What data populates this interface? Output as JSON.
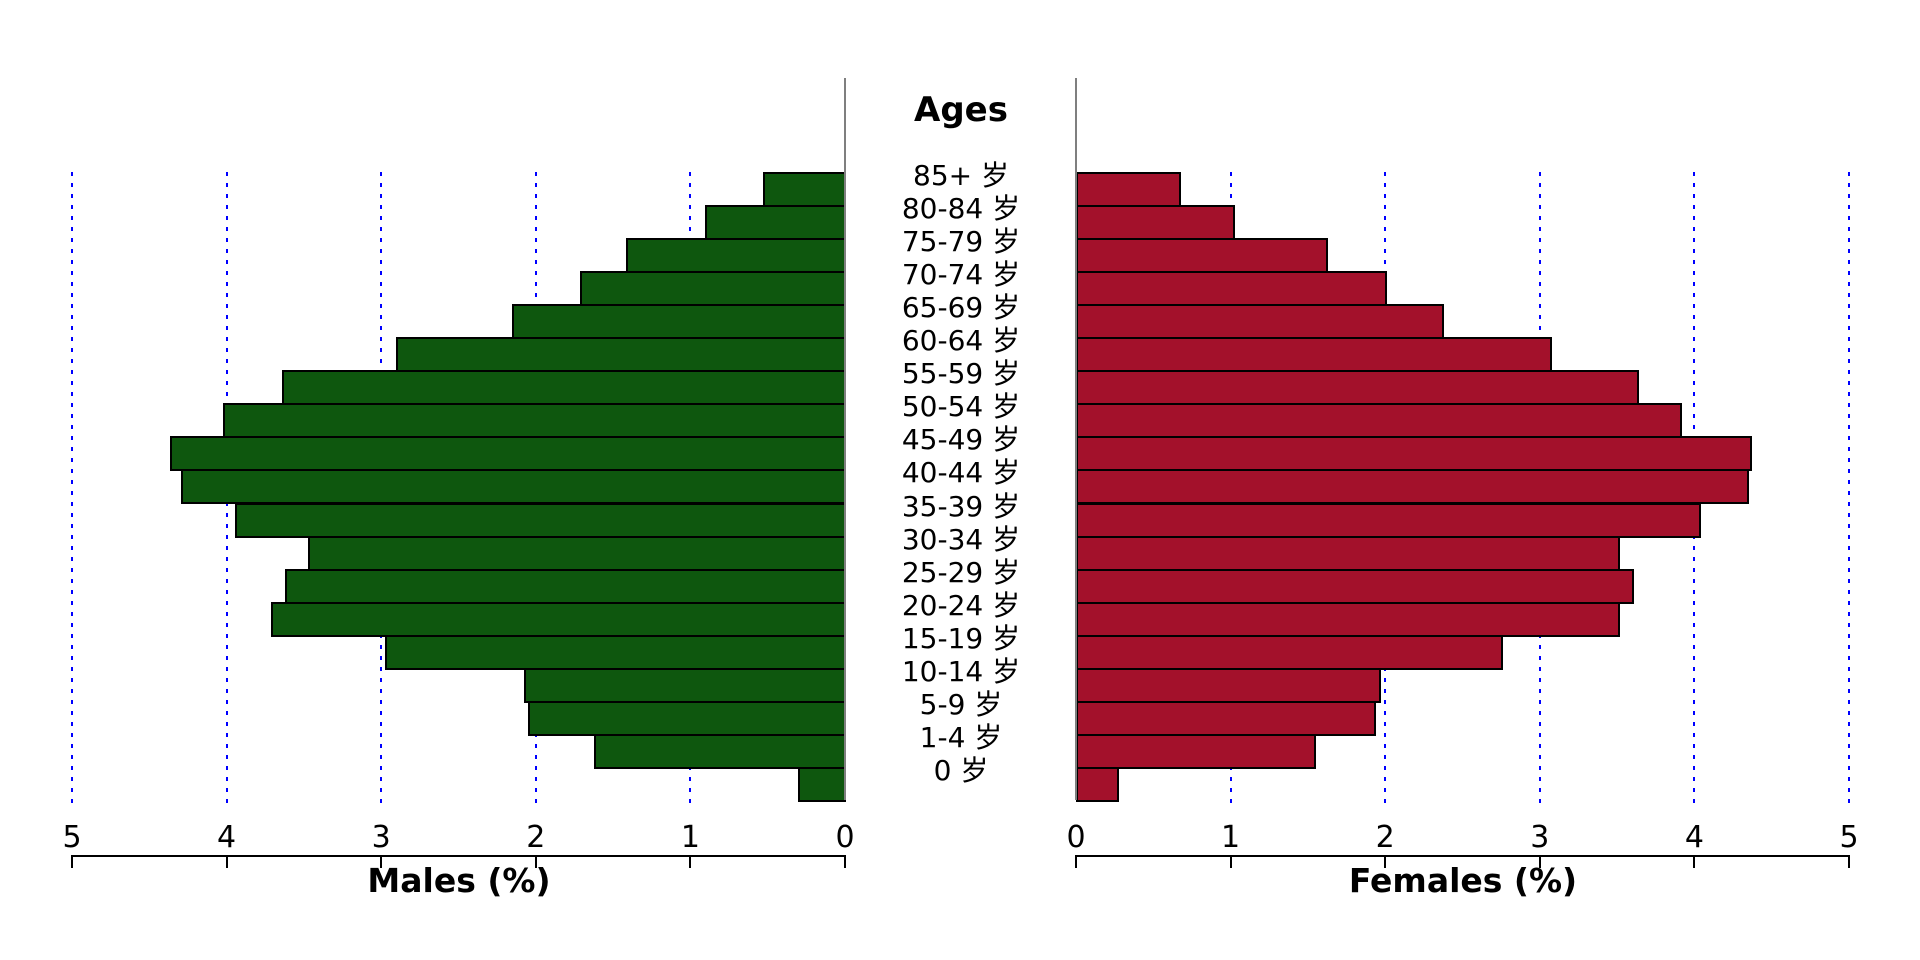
{
  "chart_data": {
    "type": "bar",
    "orientation": "horizontal",
    "variant": "population_pyramid",
    "center_title": "Ages",
    "categories": [
      "85+ 岁",
      "80-84 岁",
      "75-79 岁",
      "70-74 岁",
      "65-69 岁",
      "60-64 岁",
      "55-59 岁",
      "50-54 岁",
      "45-49 岁",
      "40-44 岁",
      "35-39 岁",
      "30-34 岁",
      "25-29 岁",
      "20-24 岁",
      "15-19 岁",
      "10-14 岁",
      "5-9 岁",
      "1-4 岁",
      "0 岁"
    ],
    "series": [
      {
        "name": "Males (%)",
        "side": "left",
        "color": "#0E570E",
        "values": [
          0.54,
          0.91,
          1.42,
          1.72,
          2.16,
          2.91,
          3.65,
          4.03,
          4.37,
          4.3,
          3.95,
          3.48,
          3.63,
          3.72,
          2.98,
          2.08,
          2.06,
          1.63,
          0.31
        ]
      },
      {
        "name": "Females (%)",
        "side": "right",
        "color": "#A3112B",
        "values": [
          0.68,
          1.03,
          1.63,
          2.01,
          2.38,
          3.08,
          3.64,
          3.92,
          4.37,
          4.35,
          4.04,
          3.52,
          3.61,
          3.52,
          2.76,
          1.97,
          1.94,
          1.55,
          0.28
        ]
      }
    ],
    "xlim": [
      0,
      5
    ],
    "x_ticks": [
      0,
      1,
      2,
      3,
      4,
      5
    ],
    "grid": {
      "show": true,
      "at": [
        1,
        2,
        3,
        4,
        5
      ],
      "style": "dotted",
      "color": "#0000FF"
    },
    "axis_color": "#000000",
    "bar_border_color": "#000000",
    "center_axis_color": "#7F7F7F",
    "background": "#FFFFFF",
    "legend_position": "none"
  }
}
